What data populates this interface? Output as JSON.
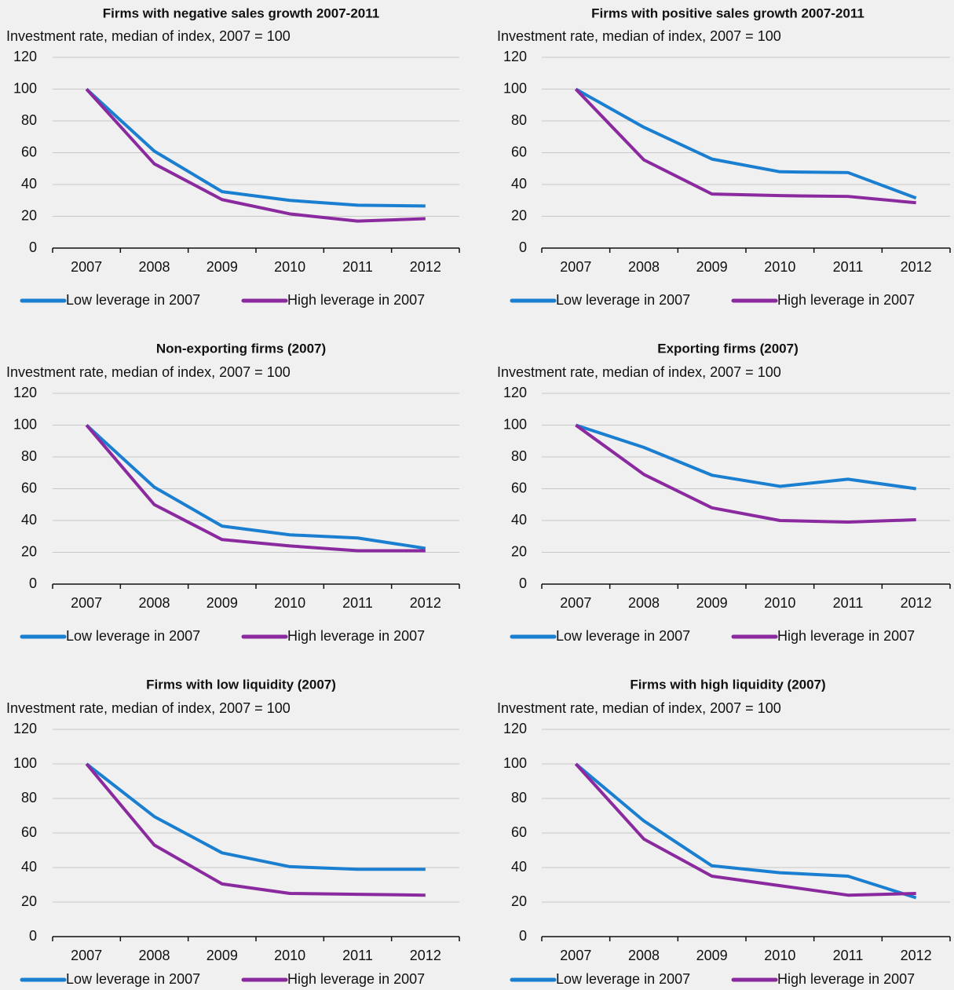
{
  "chart_data": [
    {
      "type": "line",
      "title": "Firms with negative sales growth 2007-2011",
      "subtitle": "Investment rate, median of index, 2007 = 100",
      "categories": [
        "2007",
        "2008",
        "2009",
        "2010",
        "2011",
        "2012"
      ],
      "series": [
        {
          "name": "Low leverage in 2007",
          "color": "#1a7fd0",
          "values": [
            100,
            61,
            35.5,
            30,
            27,
            26.5
          ]
        },
        {
          "name": "High leverage in 2007",
          "color": "#8a2a9e",
          "values": [
            100,
            53,
            30.5,
            21.5,
            17,
            18.5
          ]
        }
      ],
      "ylim": [
        0,
        120
      ],
      "yticks": [
        0,
        20,
        40,
        60,
        80,
        100,
        120
      ],
      "grid": true
    },
    {
      "type": "line",
      "title": "Firms with positive sales growth 2007-2011",
      "subtitle": "Investment rate, median of index, 2007 = 100",
      "categories": [
        "2007",
        "2008",
        "2009",
        "2010",
        "2011",
        "2012"
      ],
      "series": [
        {
          "name": "Low leverage in 2007",
          "color": "#1a7fd0",
          "values": [
            100,
            76,
            56,
            48,
            47.5,
            31.5
          ]
        },
        {
          "name": "High leverage in 2007",
          "color": "#8a2a9e",
          "values": [
            100,
            55.5,
            34,
            33,
            32.5,
            28.5
          ]
        }
      ],
      "ylim": [
        0,
        120
      ],
      "yticks": [
        0,
        20,
        40,
        60,
        80,
        100,
        120
      ],
      "grid": true
    },
    {
      "type": "line",
      "title": "Non-exporting firms (2007)",
      "subtitle": "Investment rate, median of index, 2007 = 100",
      "categories": [
        "2007",
        "2008",
        "2009",
        "2010",
        "2011",
        "2012"
      ],
      "series": [
        {
          "name": "Low leverage in 2007",
          "color": "#1a7fd0",
          "values": [
            100,
            61,
            36.5,
            31,
            29,
            22.5
          ]
        },
        {
          "name": "High leverage in 2007",
          "color": "#8a2a9e",
          "values": [
            100,
            50,
            28,
            24,
            21,
            21
          ]
        }
      ],
      "ylim": [
        0,
        120
      ],
      "yticks": [
        0,
        20,
        40,
        60,
        80,
        100,
        120
      ],
      "grid": true
    },
    {
      "type": "line",
      "title": "Exporting firms (2007)",
      "subtitle": "Investment rate, median of index, 2007 = 100",
      "categories": [
        "2007",
        "2008",
        "2009",
        "2010",
        "2011",
        "2012"
      ],
      "series": [
        {
          "name": "Low leverage in 2007",
          "color": "#1a7fd0",
          "values": [
            100,
            86,
            68.5,
            61.5,
            66,
            60
          ]
        },
        {
          "name": "High leverage in 2007",
          "color": "#8a2a9e",
          "values": [
            100,
            69,
            48,
            40,
            39,
            40.5
          ]
        }
      ],
      "ylim": [
        0,
        120
      ],
      "yticks": [
        0,
        20,
        40,
        60,
        80,
        100,
        120
      ],
      "grid": true
    },
    {
      "type": "line",
      "title": "Firms with low liquidity (2007)",
      "subtitle": "Investment rate, median of index, 2007 = 100",
      "categories": [
        "2007",
        "2008",
        "2009",
        "2010",
        "2011",
        "2012"
      ],
      "series": [
        {
          "name": "Low leverage in 2007",
          "color": "#1a7fd0",
          "values": [
            100,
            69.5,
            48.5,
            40.5,
            39,
            39
          ]
        },
        {
          "name": "High leverage in 2007",
          "color": "#8a2a9e",
          "values": [
            100,
            53,
            30.5,
            25,
            24.5,
            24
          ]
        }
      ],
      "ylim": [
        0,
        120
      ],
      "yticks": [
        0,
        20,
        40,
        60,
        80,
        100,
        120
      ],
      "grid": true
    },
    {
      "type": "line",
      "title": "Firms with high liquidity (2007)",
      "subtitle": "Investment rate, median of index, 2007 = 100",
      "categories": [
        "2007",
        "2008",
        "2009",
        "2010",
        "2011",
        "2012"
      ],
      "series": [
        {
          "name": "Low leverage in 2007",
          "color": "#1a7fd0",
          "values": [
            100,
            67,
            41,
            37,
            35,
            22.5
          ]
        },
        {
          "name": "High leverage in 2007",
          "color": "#8a2a9e",
          "values": [
            100,
            56.5,
            35,
            29.5,
            24,
            25
          ]
        }
      ],
      "ylim": [
        0,
        120
      ],
      "yticks": [
        0,
        20,
        40,
        60,
        80,
        100,
        120
      ],
      "grid": true
    }
  ]
}
